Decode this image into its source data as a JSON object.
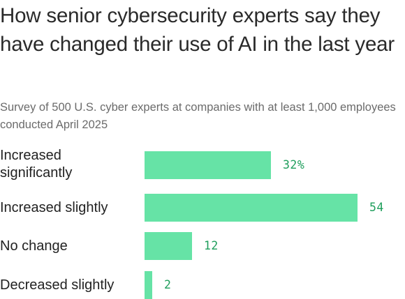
{
  "chart_data": {
    "type": "bar",
    "orientation": "horizontal",
    "title": "How senior cybersecurity experts say they have changed their use of AI in the last year",
    "subtitle": "Survey of 500 U.S. cyber experts at companies with at least 1,000 employees conducted April 2025",
    "categories": [
      "Increased significantly",
      "Increased slightly",
      "No change",
      "Decreased slightly"
    ],
    "values": [
      32,
      54,
      12,
      2
    ],
    "value_labels": [
      "32%",
      "54",
      "12",
      "2"
    ],
    "unit": "%",
    "xlim": [
      0,
      54
    ],
    "grid": false,
    "legend": "none",
    "bar_color": "#66e3a6",
    "label_color": "#1f9e5c"
  }
}
